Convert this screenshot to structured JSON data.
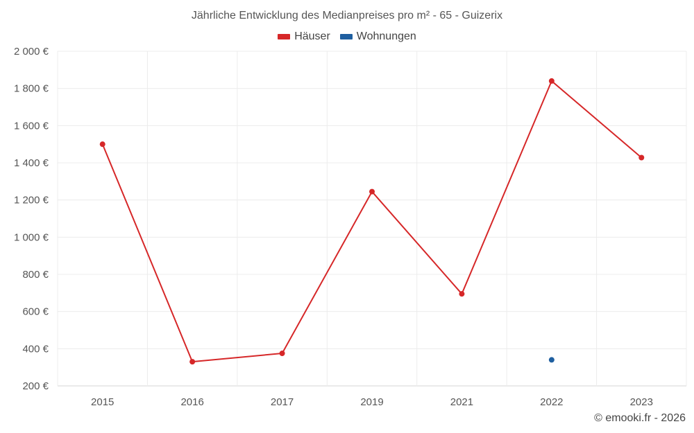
{
  "chart_data": {
    "type": "line",
    "title": "Jährliche Entwicklung des Medianpreises pro m² - 65 - Guizerix",
    "categories": [
      "2015",
      "2016",
      "2017",
      "2019",
      "2021",
      "2022",
      "2023"
    ],
    "series": [
      {
        "name": "Häuser",
        "color": "#d62728",
        "values": [
          1500,
          330,
          375,
          1245,
          695,
          1840,
          1428
        ]
      },
      {
        "name": "Wohnungen",
        "color": "#1f5fa0",
        "values": [
          null,
          null,
          null,
          null,
          null,
          340,
          null
        ]
      }
    ],
    "y_ticks": [
      "200 €",
      "400 €",
      "600 €",
      "800 €",
      "1 000 €",
      "1 200 €",
      "1 400 €",
      "1 600 €",
      "1 800 €",
      "2 000 €"
    ],
    "ylim": [
      200,
      2000
    ],
    "grid": true,
    "legend_position": "top-center"
  },
  "credit": "© emooki.fr - 2026"
}
